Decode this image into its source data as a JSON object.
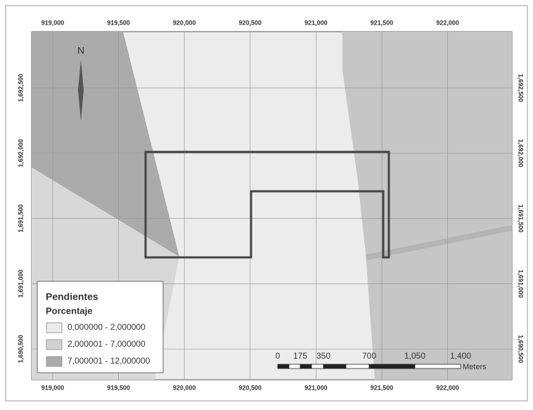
{
  "map": {
    "x_labels": [
      "919,000",
      "919,500",
      "920,000",
      "920,500",
      "921,000",
      "921,500",
      "922,000"
    ],
    "y_labels": [
      "1,692,500",
      "1,692,000",
      "1,691,500",
      "1,691,000",
      "1,690,500"
    ],
    "north": "N",
    "legend": {
      "title": "Pendientes",
      "subtitle": "Porcentaje",
      "classes": [
        {
          "label": "0,000000 - 2,000000",
          "color": "#ececec"
        },
        {
          "label": "2,000001 - 7,000000",
          "color": "#d2d2d2"
        },
        {
          "label": "7,000001 - 12,000000",
          "color": "#ababab"
        }
      ]
    },
    "scale": {
      "labels": [
        "0",
        "175",
        "350",
        "700",
        "1,050",
        "1,400"
      ],
      "unit": "Meters"
    }
  }
}
